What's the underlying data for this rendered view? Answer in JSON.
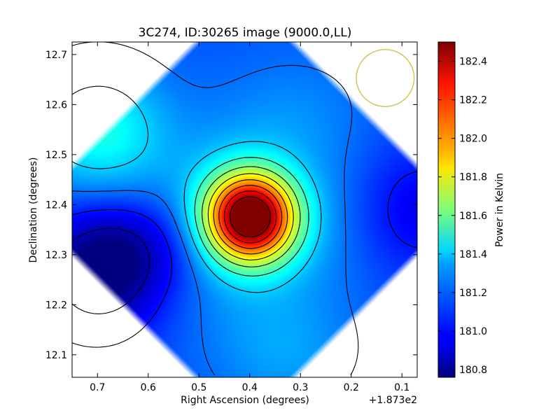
{
  "chart_data": {
    "type": "heatmap",
    "title": "3C274, ID:30265 image (9000.0,LL)",
    "xlabel": "Right Ascension (degrees)",
    "ylabel": "Declination (degrees)",
    "x_offset_label": "+1.873e2",
    "xlim": [
      0.75,
      0.07
    ],
    "ylim": [
      12.055,
      12.725
    ],
    "x_ticks": [
      "0.7",
      "0.6",
      "0.5",
      "0.4",
      "0.3",
      "0.2",
      "0.1"
    ],
    "y_ticks": [
      "12.7",
      "12.6",
      "12.5",
      "12.4",
      "12.3",
      "12.2",
      "12.1"
    ],
    "colorbar": {
      "label": "Power in Kelvin",
      "range": [
        180.76,
        182.5
      ],
      "ticks": [
        "182.4",
        "182.2",
        "182.0",
        "181.8",
        "181.6",
        "181.4",
        "181.2",
        "181.0",
        "180.8"
      ],
      "colormap": "jet"
    },
    "peak": {
      "ra": 0.4,
      "dec": 12.375,
      "value": 182.5
    },
    "secondary_sources": [
      {
        "ra": 0.7,
        "dec": 12.55,
        "value": 181.45
      },
      {
        "ra": 0.7,
        "dec": 12.25,
        "value": 180.78
      },
      {
        "ra": 0.07,
        "dec": 12.39,
        "value": 180.95
      }
    ],
    "beam_circle": {
      "ra": 0.133,
      "dec": 12.653,
      "radius_deg": 0.057,
      "color": "#c8c040"
    },
    "grid": false
  }
}
